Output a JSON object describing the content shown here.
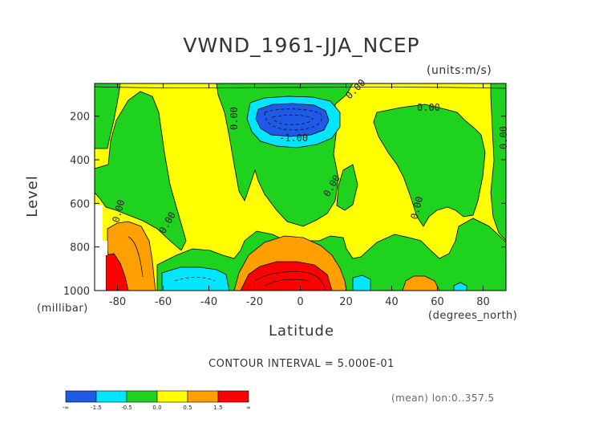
{
  "chart_data": {
    "type": "heatmap",
    "title": "VWND_1961-JJA_NCEP",
    "units_label": "(units:m/s)",
    "ylabel": "Level",
    "yunits": "(millibar)",
    "xlabel": "Latitude",
    "xunits": "(degrees_north)",
    "xlim": [
      -90,
      90
    ],
    "ylim": [
      1000,
      50
    ],
    "x_ticks": [
      -80,
      -60,
      -40,
      -20,
      0,
      20,
      40,
      60,
      80
    ],
    "y_ticks": [
      200,
      400,
      600,
      800,
      1000
    ],
    "contour_interval_text": "CONTOUR INTERVAL = 5.000E-01",
    "mean_text": "(mean) lon:0..357.5",
    "contour_labels": [
      "0.00",
      "0.00",
      "0.00",
      "0.00",
      "0.00",
      "0.00",
      "0.00",
      "0.00",
      "0.00",
      "-1.00"
    ],
    "colorbar": {
      "colors": [
        "#1e5ae6",
        "#00e6ff",
        "#1ed21e",
        "#ffff00",
        "#ffa000",
        "#ff0000"
      ],
      "labels": [
        "-∞",
        "-1.5",
        "-0.5",
        "0.0",
        "0.5",
        "1.5",
        "∞"
      ]
    }
  }
}
